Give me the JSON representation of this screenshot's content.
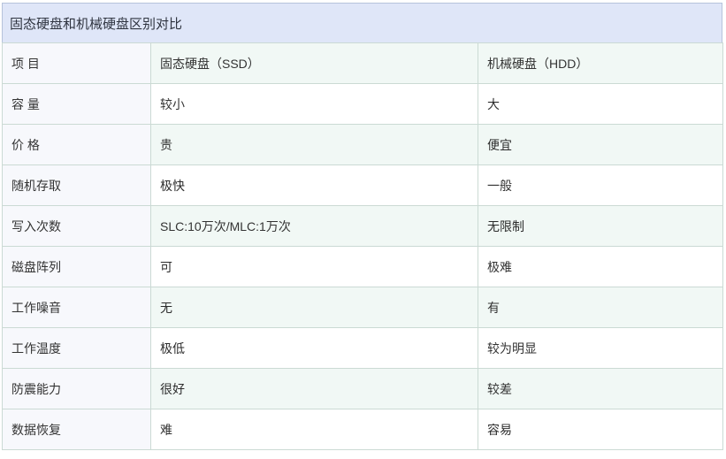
{
  "title": "固态硬盘和机械硬盘区别对比",
  "colors": {
    "title_bg": "#dfe6f8",
    "title_border": "#b6c3db",
    "cell_border": "#cbdad4",
    "item_col_bg": "#f7f8fc",
    "stripe_bg": "#f1f8f5",
    "row_bg": "#ffffff",
    "text": "#333333"
  },
  "table": {
    "headers": [
      "项 目",
      "固态硬盘（SSD）",
      "机械硬盘（HDD）"
    ],
    "rows": [
      {
        "item": "容 量",
        "ssd": "较小",
        "ssd_bold": false,
        "hdd": "大",
        "hdd_bold": true
      },
      {
        "item": "价 格",
        "ssd": "贵",
        "ssd_bold": false,
        "hdd": "便宜",
        "hdd_bold": true
      },
      {
        "item": "随机存取",
        "ssd": "极快",
        "ssd_bold": true,
        "hdd": "一般",
        "hdd_bold": false
      },
      {
        "item": "写入次数",
        "ssd": "SLC:10万次/MLC:1万次",
        "ssd_bold": false,
        "hdd": "无限制",
        "hdd_bold": true
      },
      {
        "item": "磁盘阵列",
        "ssd": "可",
        "ssd_bold": true,
        "hdd": "极难",
        "hdd_bold": false
      },
      {
        "item": "工作噪音",
        "ssd": "无",
        "ssd_bold": true,
        "hdd": "有",
        "hdd_bold": false
      },
      {
        "item": "工作温度",
        "ssd": "极低",
        "ssd_bold": true,
        "hdd": "较为明显",
        "hdd_bold": false
      },
      {
        "item": "防震能力",
        "ssd": "很好",
        "ssd_bold": true,
        "hdd": "较差",
        "hdd_bold": false
      },
      {
        "item": "数据恢复",
        "ssd": "难",
        "ssd_bold": false,
        "hdd": "容易",
        "hdd_bold": true
      }
    ]
  }
}
